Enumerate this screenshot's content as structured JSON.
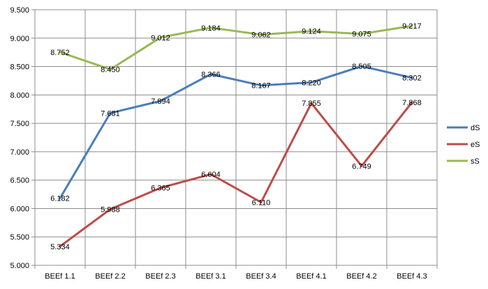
{
  "chart_data": {
    "type": "line",
    "title": "",
    "xlabel": "",
    "ylabel": "",
    "categories": [
      "BEEf 1.1",
      "BEEf 2.2",
      "BEEf 2.3",
      "BEEf 3.1",
      "BEEf 3.4",
      "BEEf 4.1",
      "BEEf 4.2",
      "BEEf 4.3"
    ],
    "ylim": [
      5.0,
      9.5
    ],
    "ytick_step": 0.5,
    "ytick_labels": [
      "5.000",
      "5.500",
      "6.000",
      "6.500",
      "7.000",
      "7.500",
      "8.000",
      "8.500",
      "9.000",
      "9.500"
    ],
    "grid": true,
    "legend_position": "right",
    "series": [
      {
        "name": "dS",
        "color": "#4a7ebb",
        "values": [
          6.182,
          7.681,
          7.894,
          8.366,
          8.167,
          8.22,
          8.505,
          8.302
        ],
        "labels": [
          "6.182",
          "7.681",
          "7.894",
          "8.366",
          "8.167",
          "8.220",
          "8.505",
          "8.302"
        ]
      },
      {
        "name": "eS",
        "color": "#be4b48",
        "values": [
          5.334,
          5.988,
          6.365,
          6.604,
          6.11,
          7.855,
          6.749,
          7.868
        ],
        "labels": [
          "5.334",
          "5.988",
          "6.365",
          "6.604",
          "6.110",
          "7.855",
          "6.749",
          "7.868"
        ]
      },
      {
        "name": "sS",
        "color": "#98b954",
        "values": [
          8.752,
          8.45,
          9.012,
          9.184,
          9.062,
          9.124,
          9.075,
          9.217
        ],
        "labels": [
          "8.752",
          "8.450",
          "9.012",
          "9.184",
          "9.062",
          "9.124",
          "9.075",
          "9.217"
        ]
      }
    ]
  }
}
